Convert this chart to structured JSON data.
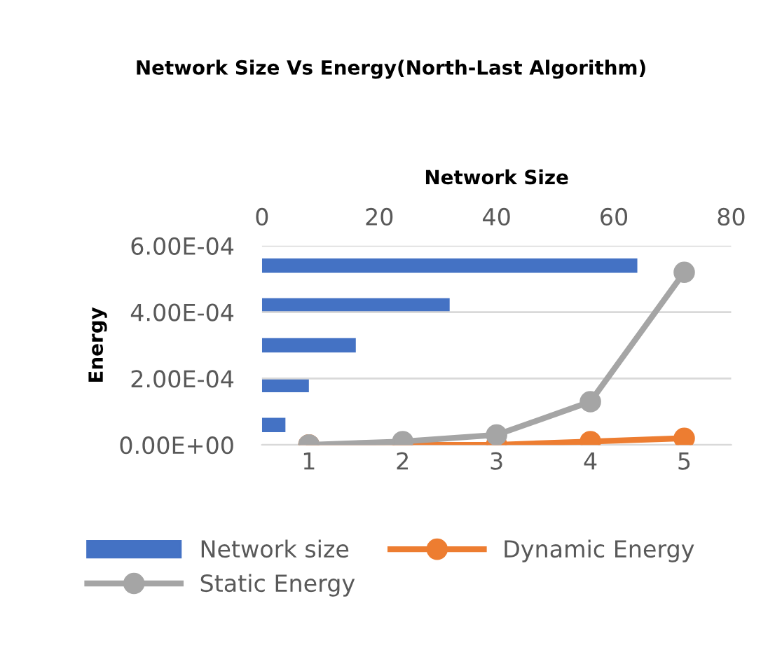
{
  "chart_data": [
    {
      "type": "bar",
      "orientation": "horizontal",
      "title": "Network Size Vs Energy(North-Last Algorithm)",
      "xlabel": "Network Size",
      "categories": [
        null,
        null,
        null,
        null,
        null
      ],
      "series": [
        {
          "name": "Network size",
          "color": "#4472c4",
          "values": [
            64,
            32,
            16,
            8,
            4
          ]
        }
      ],
      "xlim": [
        0,
        80
      ],
      "xticks": [
        0,
        20,
        40,
        60,
        80
      ],
      "legend": "bottom"
    },
    {
      "type": "line",
      "ylabel": "Energy",
      "categories": [
        "1",
        "2",
        "3",
        "4",
        "5"
      ],
      "series": [
        {
          "name": "Dynamic Energy",
          "color": "#ed7d31",
          "values": [
            0.0,
            0.0,
            0.0,
            1e-05,
            2e-05
          ]
        },
        {
          "name": "Static Energy",
          "color": "#a5a5a5",
          "values": [
            0.0,
            1e-05,
            3e-05,
            0.00013,
            0.00052
          ]
        }
      ],
      "ylim": [
        0,
        0.0006
      ],
      "yticks": [
        {
          "value": 0,
          "label": "0.00E+00"
        },
        {
          "value": 0.0002,
          "label": "2.00E-04"
        },
        {
          "value": 0.0004,
          "label": "4.00E-04"
        },
        {
          "value": 0.0006,
          "label": "6.00E-04"
        }
      ],
      "grid": "y",
      "legend": "bottom",
      "marker": "circle",
      "line_style": "solid"
    }
  ]
}
